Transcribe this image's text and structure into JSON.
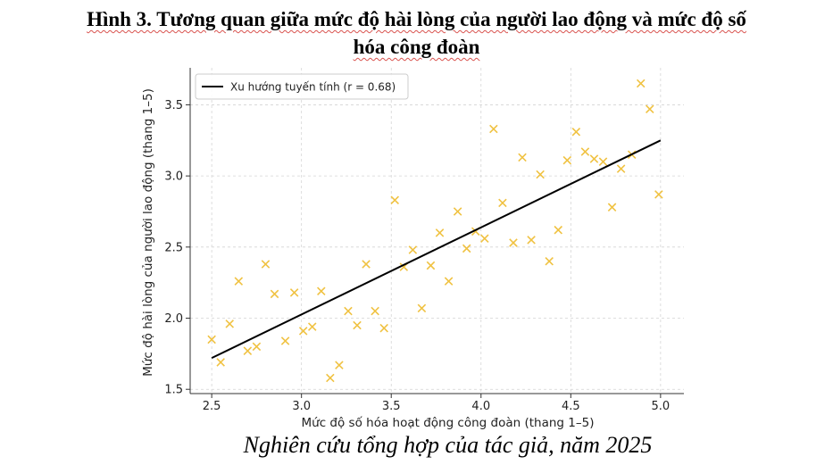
{
  "figure": {
    "title_line1": "Hình 3. Tương quan giữa mức độ hài lòng của người lao động và mức độ số",
    "title_line2": "hóa công đoàn",
    "source_note": "Nghiên cứu tổng hợp của tác giả, năm 2025"
  },
  "chart_data": {
    "type": "scatter",
    "title": "",
    "xlabel": "Mức độ số hóa hoạt động công đoàn (thang 1–5)",
    "ylabel": "Mức độ hài lòng của người lao động (thang 1–5)",
    "xlim": [
      2.38,
      5.13
    ],
    "ylim": [
      1.47,
      3.76
    ],
    "xticks": [
      2.5,
      3.0,
      3.5,
      4.0,
      4.5,
      5.0
    ],
    "xtick_labels": [
      "2.5",
      "3.0",
      "3.5",
      "4.0",
      "4.5",
      "5.0"
    ],
    "yticks": [
      1.5,
      2.0,
      2.5,
      3.0,
      3.5
    ],
    "ytick_labels": [
      "1.5",
      "2.0",
      "2.5",
      "3.0",
      "3.5"
    ],
    "grid": true,
    "legend_position": "top-left",
    "series": [
      {
        "marker": "x",
        "color": "#f0c242",
        "points": [
          [
            2.5,
            1.85
          ],
          [
            2.55,
            1.69
          ],
          [
            2.6,
            1.96
          ],
          [
            2.65,
            2.26
          ],
          [
            2.7,
            1.77
          ],
          [
            2.75,
            1.8
          ],
          [
            2.8,
            2.38
          ],
          [
            2.85,
            2.17
          ],
          [
            2.91,
            1.84
          ],
          [
            2.96,
            2.18
          ],
          [
            3.01,
            1.91
          ],
          [
            3.06,
            1.94
          ],
          [
            3.11,
            2.19
          ],
          [
            3.16,
            1.58
          ],
          [
            3.21,
            1.67
          ],
          [
            3.26,
            2.05
          ],
          [
            3.31,
            1.95
          ],
          [
            3.36,
            2.38
          ],
          [
            3.41,
            2.05
          ],
          [
            3.46,
            1.93
          ],
          [
            3.52,
            2.83
          ],
          [
            3.57,
            2.36
          ],
          [
            3.62,
            2.48
          ],
          [
            3.67,
            2.07
          ],
          [
            3.72,
            2.37
          ],
          [
            3.77,
            2.6
          ],
          [
            3.82,
            2.26
          ],
          [
            3.87,
            2.75
          ],
          [
            3.92,
            2.49
          ],
          [
            3.97,
            2.61
          ],
          [
            4.02,
            2.56
          ],
          [
            4.07,
            3.33
          ],
          [
            4.12,
            2.81
          ],
          [
            4.18,
            2.53
          ],
          [
            4.23,
            3.13
          ],
          [
            4.28,
            2.55
          ],
          [
            4.33,
            3.01
          ],
          [
            4.38,
            2.4
          ],
          [
            4.43,
            2.62
          ],
          [
            4.48,
            3.11
          ],
          [
            4.53,
            3.31
          ],
          [
            4.58,
            3.17
          ],
          [
            4.63,
            3.12
          ],
          [
            4.68,
            3.1
          ],
          [
            4.73,
            2.78
          ],
          [
            4.78,
            3.05
          ],
          [
            4.84,
            3.15
          ],
          [
            4.89,
            3.65
          ],
          [
            4.94,
            3.47
          ],
          [
            4.99,
            2.87
          ]
        ]
      },
      {
        "name": "Xu hướng tuyến tính (r = 0.68)",
        "type": "line",
        "color": "#000000",
        "x": [
          2.5,
          5.0
        ],
        "y": [
          1.72,
          3.25
        ]
      }
    ]
  }
}
